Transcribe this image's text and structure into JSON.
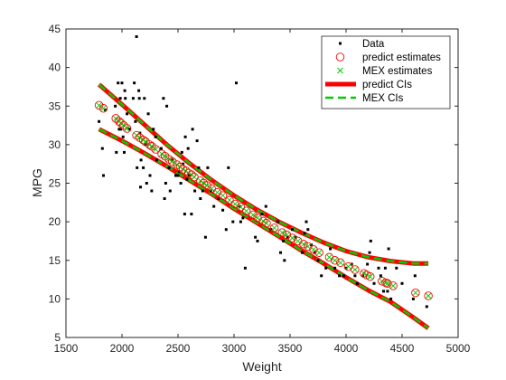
{
  "colors": {
    "data": "#000000",
    "predict": "#ff0000",
    "mex": "#00cc00",
    "axis": "#262626"
  },
  "chart_data": {
    "type": "scatter",
    "title": "",
    "xlabel": "Weight",
    "ylabel": "MPG",
    "xlim": [
      1500,
      5000
    ],
    "ylim": [
      5,
      45
    ],
    "xticks": [
      1500,
      2000,
      2500,
      3000,
      3500,
      4000,
      4500,
      5000
    ],
    "yticks": [
      5,
      10,
      15,
      20,
      25,
      30,
      35,
      40,
      45
    ],
    "grid": false,
    "legend_position": "top-right",
    "legend": [
      "Data",
      "predict estimates",
      "MEX estimates",
      "predict CIs",
      "MEX CIs"
    ],
    "series": [
      {
        "name": "Data",
        "style": "points",
        "points": [
          [
            1795,
            33
          ],
          [
            1825,
            29.5
          ],
          [
            1835,
            26
          ],
          [
            1850,
            34.5
          ],
          [
            1940,
            35
          ],
          [
            1950,
            29
          ],
          [
            1965,
            38
          ],
          [
            1975,
            32
          ],
          [
            1985,
            36
          ],
          [
            1990,
            32
          ],
          [
            2000,
            38
          ],
          [
            2010,
            31
          ],
          [
            2020,
            29
          ],
          [
            2025,
            37
          ],
          [
            2030,
            36
          ],
          [
            2045,
            34
          ],
          [
            2065,
            32
          ],
          [
            2100,
            36
          ],
          [
            2110,
            38
          ],
          [
            2120,
            33
          ],
          [
            2130,
            44
          ],
          [
            2135,
            27
          ],
          [
            2150,
            37
          ],
          [
            2155,
            36
          ],
          [
            2160,
            31.5
          ],
          [
            2165,
            24.5
          ],
          [
            2170,
            28
          ],
          [
            2190,
            27
          ],
          [
            2200,
            36
          ],
          [
            2210,
            30
          ],
          [
            2220,
            25
          ],
          [
            2235,
            34
          ],
          [
            2250,
            26
          ],
          [
            2265,
            24
          ],
          [
            2280,
            32
          ],
          [
            2300,
            31
          ],
          [
            2310,
            28
          ],
          [
            2350,
            29.5
          ],
          [
            2370,
            36
          ],
          [
            2380,
            23
          ],
          [
            2390,
            25
          ],
          [
            2400,
            35
          ],
          [
            2420,
            27
          ],
          [
            2430,
            24
          ],
          [
            2450,
            28
          ],
          [
            2480,
            26
          ],
          [
            2500,
            26
          ],
          [
            2510,
            26.5
          ],
          [
            2525,
            25
          ],
          [
            2535,
            29
          ],
          [
            2545,
            27.5
          ],
          [
            2560,
            21
          ],
          [
            2565,
            31
          ],
          [
            2580,
            25.5
          ],
          [
            2590,
            29.5
          ],
          [
            2600,
            26
          ],
          [
            2620,
            21
          ],
          [
            2630,
            32
          ],
          [
            2650,
            24
          ],
          [
            2670,
            30.5
          ],
          [
            2685,
            27
          ],
          [
            2700,
            23
          ],
          [
            2720,
            24
          ],
          [
            2745,
            18
          ],
          [
            2765,
            27
          ],
          [
            2790,
            24
          ],
          [
            2820,
            22
          ],
          [
            2860,
            23
          ],
          [
            2900,
            21.5
          ],
          [
            2930,
            19
          ],
          [
            2950,
            27
          ],
          [
            2990,
            20
          ],
          [
            3020,
            38
          ],
          [
            3050,
            22
          ],
          [
            3060,
            20
          ],
          [
            3080,
            20.5
          ],
          [
            3100,
            14
          ],
          [
            3190,
            18
          ],
          [
            3210,
            17.5
          ],
          [
            3250,
            21
          ],
          [
            3285,
            22
          ],
          [
            3330,
            19
          ],
          [
            3390,
            20
          ],
          [
            3415,
            16
          ],
          [
            3440,
            17.5
          ],
          [
            3450,
            15
          ],
          [
            3480,
            18
          ],
          [
            3520,
            19
          ],
          [
            3550,
            18
          ],
          [
            3610,
            16
          ],
          [
            3630,
            18.5
          ],
          [
            3645,
            20
          ],
          [
            3660,
            19
          ],
          [
            3690,
            17
          ],
          [
            3720,
            16
          ],
          [
            3750,
            15
          ],
          [
            3780,
            13
          ],
          [
            3820,
            14
          ],
          [
            3860,
            16.5
          ],
          [
            3900,
            14
          ],
          [
            3940,
            13
          ],
          [
            3980,
            13
          ],
          [
            4000,
            14
          ],
          [
            4050,
            14.5
          ],
          [
            4080,
            13
          ],
          [
            4100,
            12
          ],
          [
            4150,
            13
          ],
          [
            4190,
            14.5
          ],
          [
            4210,
            16
          ],
          [
            4220,
            17.5
          ],
          [
            4250,
            12
          ],
          [
            4290,
            14
          ],
          [
            4310,
            13
          ],
          [
            4335,
            11
          ],
          [
            4350,
            14
          ],
          [
            4370,
            11
          ],
          [
            4380,
            16.5
          ],
          [
            4400,
            10
          ],
          [
            4450,
            14
          ],
          [
            4500,
            12
          ],
          [
            4600,
            10
          ],
          [
            4615,
            13
          ],
          [
            4720,
            9
          ]
        ]
      },
      {
        "name": "predict estimates",
        "style": "open-circle",
        "points": [
          [
            1795,
            35.1
          ],
          [
            1835,
            34.7
          ],
          [
            1945,
            33.4
          ],
          [
            1975,
            33.0
          ],
          [
            1990,
            32.8
          ],
          [
            2015,
            32.5
          ],
          [
            2045,
            32.1
          ],
          [
            2130,
            31.2
          ],
          [
            2160,
            30.9
          ],
          [
            2190,
            30.6
          ],
          [
            2210,
            30.4
          ],
          [
            2245,
            30.0
          ],
          [
            2265,
            29.8
          ],
          [
            2300,
            29.4
          ],
          [
            2355,
            28.8
          ],
          [
            2385,
            28.5
          ],
          [
            2420,
            28.1
          ],
          [
            2450,
            27.8
          ],
          [
            2490,
            27.4
          ],
          [
            2520,
            27.1
          ],
          [
            2545,
            26.8
          ],
          [
            2570,
            26.6
          ],
          [
            2595,
            26.3
          ],
          [
            2620,
            26.1
          ],
          [
            2645,
            25.8
          ],
          [
            2700,
            25.3
          ],
          [
            2730,
            25.0
          ],
          [
            2760,
            24.7
          ],
          [
            2800,
            24.3
          ],
          [
            2850,
            23.8
          ],
          [
            2900,
            23.4
          ],
          [
            2960,
            22.8
          ],
          [
            3010,
            22.3
          ],
          [
            3060,
            21.9
          ],
          [
            3110,
            21.4
          ],
          [
            3170,
            20.9
          ],
          [
            3210,
            20.5
          ],
          [
            3260,
            20.1
          ],
          [
            3290,
            19.8
          ],
          [
            3360,
            19.2
          ],
          [
            3430,
            18.6
          ],
          [
            3470,
            18.3
          ],
          [
            3520,
            17.9
          ],
          [
            3570,
            17.5
          ],
          [
            3620,
            17.1
          ],
          [
            3660,
            16.8
          ],
          [
            3710,
            16.4
          ],
          [
            3760,
            16.0
          ],
          [
            3850,
            15.4
          ],
          [
            3900,
            15.0
          ],
          [
            3950,
            14.7
          ],
          [
            4020,
            14.2
          ],
          [
            4080,
            13.8
          ],
          [
            4160,
            13.3
          ],
          [
            4185,
            13.1
          ],
          [
            4215,
            12.9
          ],
          [
            4320,
            12.3
          ],
          [
            4355,
            12.1
          ],
          [
            4370,
            12.0
          ],
          [
            4420,
            11.7
          ],
          [
            4620,
            10.8
          ],
          [
            4735,
            10.4
          ]
        ]
      },
      {
        "name": "MEX estimates",
        "style": "x-mark",
        "same_points_as": "predict estimates"
      },
      {
        "name": "predict CIs",
        "style": "thick-line",
        "lines": [
          [
            [
              1795,
              37.8
            ],
            [
              2000,
              35.2
            ],
            [
              2200,
              32.6
            ],
            [
              2400,
              30.0
            ],
            [
              2600,
              27.6
            ],
            [
              2800,
              25.4
            ],
            [
              3000,
              23.4
            ],
            [
              3200,
              21.6
            ],
            [
              3400,
              20.0
            ],
            [
              3600,
              18.6
            ],
            [
              3800,
              17.3
            ],
            [
              4000,
              16.2
            ],
            [
              4200,
              15.4
            ],
            [
              4400,
              14.9
            ],
            [
              4600,
              14.6
            ],
            [
              4735,
              14.6
            ]
          ],
          [
            [
              1795,
              32.0
            ],
            [
              2000,
              30.5
            ],
            [
              2200,
              28.9
            ],
            [
              2400,
              27.2
            ],
            [
              2600,
              25.4
            ],
            [
              2800,
              23.6
            ],
            [
              3000,
              21.7
            ],
            [
              3200,
              19.9
            ],
            [
              3400,
              18.1
            ],
            [
              3600,
              16.3
            ],
            [
              3800,
              14.6
            ],
            [
              4000,
              12.8
            ],
            [
              4200,
              11.1
            ],
            [
              4400,
              9.6
            ],
            [
              4600,
              7.6
            ],
            [
              4735,
              6.2
            ]
          ]
        ]
      },
      {
        "name": "MEX CIs",
        "style": "dashed-line",
        "same_lines_as": "predict CIs"
      }
    ]
  }
}
